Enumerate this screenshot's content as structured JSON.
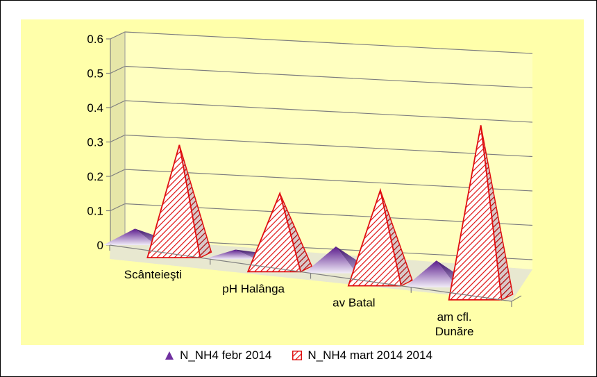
{
  "chart_data": {
    "type": "bar",
    "shape": "pyramid",
    "categories": [
      "Scânteieşti",
      "pH Halânga",
      "av Batal",
      "am cfl.\nDunăre"
    ],
    "series": [
      {
        "name": "N_NH4 febr 2014",
        "values": [
          0.04,
          0.02,
          0.07,
          0.07
        ],
        "color": "#7030A0"
      },
      {
        "name": "N_NH4 mart 2014 2014",
        "values": [
          0.32,
          0.22,
          0.27,
          0.5
        ],
        "color": "#FF0000"
      }
    ],
    "yticks": [
      "0",
      "0.1",
      "0.2",
      "0.3",
      "0.4",
      "0.5",
      "0.6"
    ],
    "ylim": [
      0,
      0.6
    ],
    "grid": true,
    "legend_position": "bottom",
    "colors": {
      "plot_background": "#FFFFAA",
      "wall": "#FFFFC0",
      "side_wall": "#E6E6A8",
      "floor": "#E8E8D0"
    }
  }
}
